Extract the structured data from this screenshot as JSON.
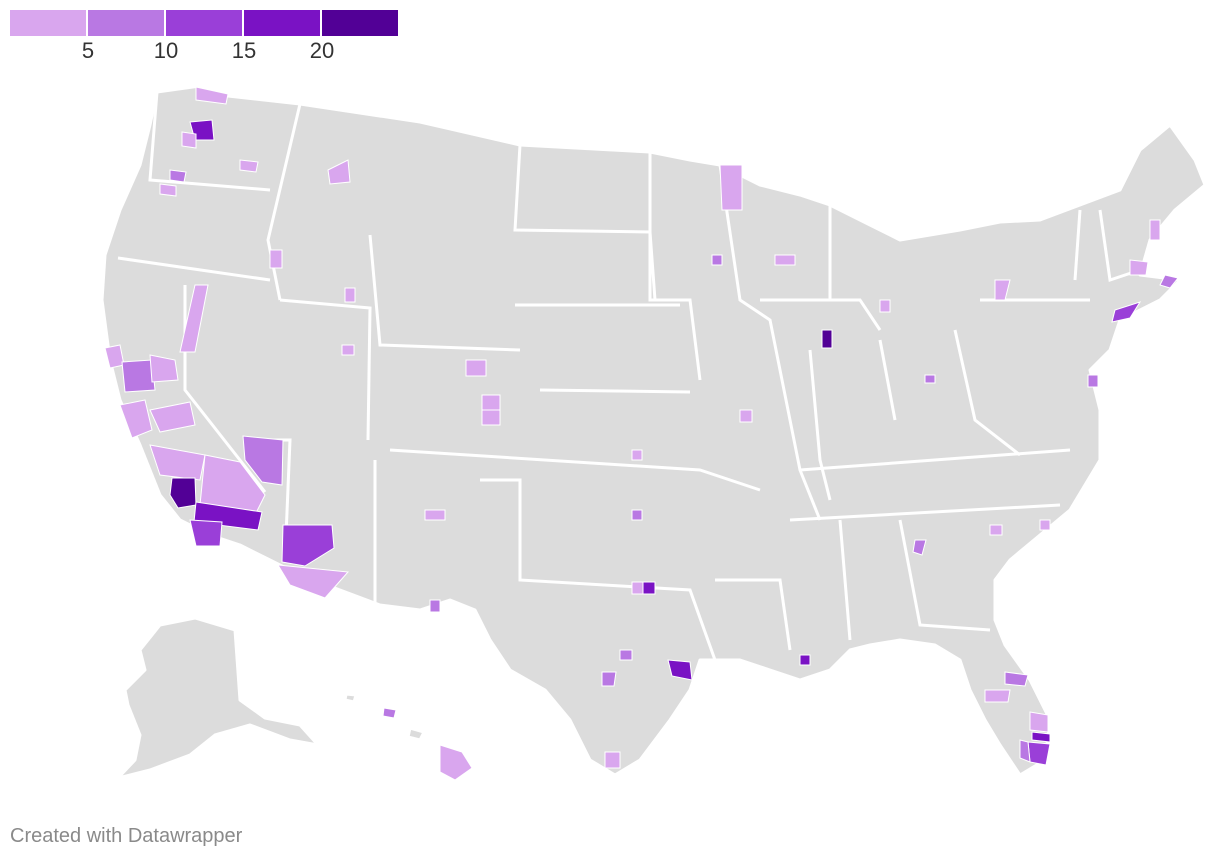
{
  "legend": {
    "colors": [
      "#d9a6ee",
      "#b978e3",
      "#9a3fd8",
      "#7a12c4",
      "#520096"
    ],
    "ticks": [
      "5",
      "10",
      "15",
      "20"
    ]
  },
  "base_color": "#dcdcdc",
  "footer": "Created with Datawrapper"
}
